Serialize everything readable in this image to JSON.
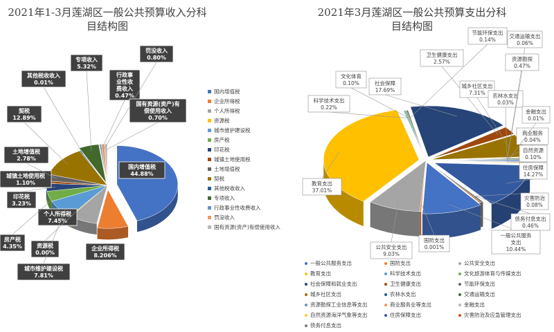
{
  "chart_data": [
    {
      "type": "pie",
      "title": "2021年1-3月莲湖区一般公共预算收入分科\n目结构图",
      "title_lines": [
        "2021年1-3月莲湖区一般公共预算收入分科",
        "目结构图"
      ],
      "categories": [
        "国内增值税",
        "企业所得税",
        "个人所得税",
        "资源税",
        "城市维护建设税",
        "房产税",
        "印花税",
        "城镇土地使用税",
        "土地增值税",
        "契税",
        "其他税收收入",
        "专项收入",
        "行政事业性收费收入",
        "罚没收入",
        "国有资源(资产)有偿使用收入"
      ],
      "values": [
        44.88,
        8.206,
        7.45,
        0.0,
        7.81,
        4.35,
        3.23,
        1.1,
        2.78,
        12.89,
        0.01,
        5.32,
        0.47,
        0.8,
        0.7
      ],
      "value_labels": [
        "44.88%",
        "8.206%",
        "7.45%",
        "0.00%",
        "7.81%",
        "4.35%",
        "3.23%",
        "1.10%",
        "2.78%",
        "12.89%",
        "0.01%",
        "5.32%",
        "0.47%",
        "0.80%",
        "0.70%"
      ],
      "data_label_names": [
        "国内增值税",
        "企业所得税",
        "个人所得税",
        "资源税",
        "城市维护建设税",
        "房产税",
        "印花税",
        "城镇土地使用税",
        "土地增值税",
        "契税",
        "其他税收收入",
        "专项收入",
        "行政事\n业性收\n费收入",
        "罚没收入",
        "国有资源(资产)有\n偿使用收入"
      ],
      "colors": [
        "#4472C4",
        "#ED7D31",
        "#A5A5A5",
        "#FFC000",
        "#5B9BD5",
        "#70AD47",
        "#264478",
        "#9E480E",
        "#636363",
        "#997300",
        "#255E91",
        "#43682B",
        "#698ED0",
        "#F1975A",
        "#B7B7B7"
      ],
      "legend_position": "right"
    },
    {
      "type": "pie",
      "title": "2021年3月莲湖区一般公共预算支出分科\n目结构图",
      "title_lines": [
        "2021年3月莲湖区一般公共预算支出分科",
        "目结构图"
      ],
      "legend_categories": [
        "一般公共服务支出",
        "国防支出",
        "公共安全支出",
        "教育支出",
        "科学技术支出",
        "文化旅游体育与传媒支出",
        "社会保障和就业支出",
        "卫生健康支出",
        "节能环保支出",
        "城乡社区支出",
        "农林水支出",
        "交通运输支出",
        "资源勘探工业信息等支出",
        "商业服务业等支出",
        "金融支出",
        "自然资源海洋气象等支出",
        "住房保障支出",
        "灾害防治及应急管理支出",
        "债务付息支出"
      ],
      "slice_labels": [
        "一般公共服务\n支出",
        "国防支出",
        "公共安全支出",
        "教育支出",
        "科学技术支出",
        "文化体育",
        "社会保障",
        "卫生健康支出",
        "节能环保支出",
        "城乡社区支出",
        "农林水支出",
        "交通运输支出",
        "资源勘探",
        "商业服务",
        "金融支出",
        "自然资源",
        "住房保障",
        "灾害防治",
        "债务付息支出"
      ],
      "values": [
        10.44,
        0.001,
        9.03,
        37.01,
        0.22,
        0.1,
        17.69,
        2.57,
        0.14,
        7.31,
        0.03,
        0.06,
        0.47,
        0.04,
        0.01,
        0.1,
        14.27,
        0.08,
        0.46
      ],
      "value_labels": [
        "10.44%",
        "0.001%",
        "9.03%",
        "37.01%",
        "0.22%",
        "0.10%",
        "17.69%",
        "2.57%",
        "0.14%",
        "7.31%",
        "0.03%",
        "0.06%",
        "0.47%",
        "0.04%",
        "0.01%",
        "0.10%",
        "14.27%",
        "0.08%",
        "0.46%"
      ],
      "colors": [
        "#4472C4",
        "#ED7D31",
        "#A5A5A5",
        "#FFC000",
        "#5B9BD5",
        "#70AD47",
        "#264478",
        "#9E480E",
        "#636363",
        "#997300",
        "#255E91",
        "#43682B",
        "#698ED0",
        "#F1975A",
        "#B7B7B7",
        "#FFCD33",
        "#335AA1",
        "#C55A11",
        "#7B7B7B"
      ],
      "legend_position": "bottom"
    }
  ]
}
